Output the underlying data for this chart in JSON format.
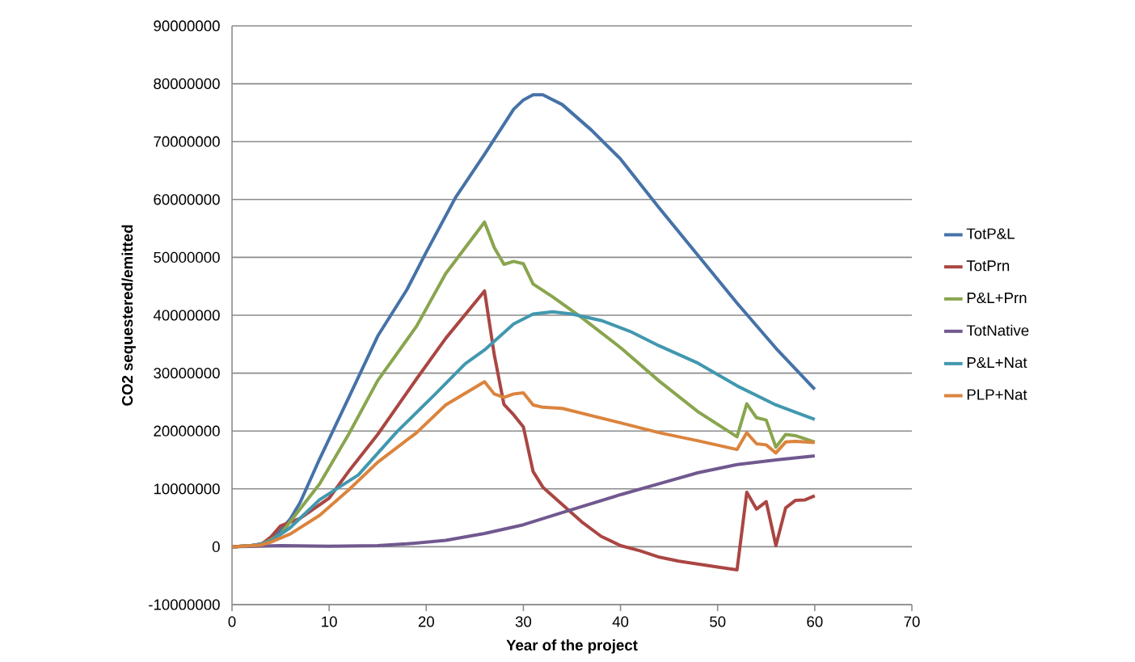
{
  "chart_data": {
    "type": "line",
    "xlabel": "Year of the project",
    "ylabel": "CO2 sequestered/emitted",
    "xlim": [
      0,
      70
    ],
    "ylim": [
      -10000000,
      90000000
    ],
    "xticks": [
      0,
      10,
      20,
      30,
      40,
      50,
      60,
      70
    ],
    "yticks": [
      -10000000,
      0,
      10000000,
      20000000,
      30000000,
      40000000,
      50000000,
      60000000,
      70000000,
      80000000,
      90000000
    ],
    "grid": "y",
    "legend": "right",
    "marker": "none",
    "line_style": "solid",
    "series": [
      {
        "name": "TotP&L",
        "color": "#4572a7",
        "x": [
          0,
          1,
          2,
          3,
          4,
          5,
          6,
          7,
          9,
          12,
          15,
          18,
          20,
          23,
          26,
          29,
          30,
          31,
          32,
          34,
          37,
          40,
          44,
          48,
          52,
          56,
          60
        ],
        "values": [
          0,
          100000,
          200000,
          500000,
          1200000,
          2800000,
          4800000,
          7600000,
          15100000,
          25700000,
          36400000,
          44400000,
          50900000,
          60300000,
          67800000,
          75600000,
          77200000,
          78100000,
          78100000,
          76400000,
          72000000,
          67000000,
          58500000,
          50300000,
          42100000,
          34300000,
          27200000
        ]
      },
      {
        "name": "TotPrn",
        "color": "#aa4643",
        "x": [
          0,
          1,
          2,
          3,
          4,
          5,
          7,
          10,
          12,
          15,
          19,
          22,
          26,
          27,
          28,
          29,
          30,
          31,
          32,
          34,
          36,
          38,
          40,
          42,
          44,
          46,
          48,
          50,
          52,
          53,
          54,
          55,
          56,
          57,
          58,
          59,
          60
        ],
        "values": [
          0,
          100000,
          200000,
          400000,
          1700000,
          3600000,
          4900000,
          8400000,
          13000000,
          19400000,
          29000000,
          36000000,
          44200000,
          33200000,
          24600000,
          22800000,
          20700000,
          13000000,
          10300000,
          7300000,
          4300000,
          1800000,
          200000,
          -700000,
          -1800000,
          -2500000,
          -3000000,
          -3500000,
          -4000000,
          9400000,
          6500000,
          7800000,
          200000,
          6700000,
          8000000,
          8100000,
          8800000
        ]
      },
      {
        "name": "P&L+Prn",
        "color": "#89a54e",
        "x": [
          0,
          1,
          2,
          3,
          4,
          5,
          9,
          12,
          15,
          19,
          22,
          26,
          27,
          28,
          29,
          30,
          31,
          33,
          36,
          40,
          44,
          48,
          52,
          53,
          54,
          55,
          56,
          57,
          58,
          60
        ],
        "values": [
          0,
          100000,
          200000,
          400000,
          1200000,
          2200000,
          10800000,
          19400000,
          28700000,
          38100000,
          47200000,
          56100000,
          51700000,
          48800000,
          49300000,
          48900000,
          45400000,
          43200000,
          39600000,
          34400000,
          28600000,
          23300000,
          19000000,
          24700000,
          22300000,
          21900000,
          17200000,
          19400000,
          19200000,
          18100000
        ]
      },
      {
        "name": "TotNative",
        "color": "#71588f",
        "x": [
          0,
          5,
          10,
          15,
          18,
          22,
          26,
          30,
          34,
          40,
          44,
          48,
          52,
          56,
          60
        ],
        "values": [
          0,
          200000,
          100000,
          200000,
          500000,
          1100000,
          2300000,
          3800000,
          5900000,
          9000000,
          10900000,
          12800000,
          14200000,
          15000000,
          15700000
        ]
      },
      {
        "name": "P&L+Nat",
        "color": "#4198af",
        "x": [
          0,
          1,
          2,
          3,
          4,
          6,
          9,
          13,
          17,
          21,
          24,
          26,
          29,
          31,
          33,
          35,
          38,
          41,
          44,
          48,
          52,
          56,
          60
        ],
        "values": [
          0,
          100000,
          200000,
          400000,
          1000000,
          3300000,
          8100000,
          12400000,
          19900000,
          26500000,
          31600000,
          34000000,
          38500000,
          40200000,
          40600000,
          40200000,
          39100000,
          37200000,
          34700000,
          31700000,
          27800000,
          24500000,
          22000000
        ]
      },
      {
        "name": "PLP+Nat",
        "color": "#db843d",
        "x": [
          0,
          1,
          2,
          3,
          4,
          6,
          9,
          12,
          15,
          19,
          22,
          26,
          27,
          28,
          29,
          30,
          31,
          32,
          34,
          40,
          44,
          48,
          52,
          53,
          54,
          55,
          56,
          57,
          58,
          60
        ],
        "values": [
          0,
          100000,
          200000,
          300000,
          800000,
          2200000,
          5400000,
          9800000,
          14600000,
          19700000,
          24500000,
          28500000,
          26400000,
          25800000,
          26400000,
          26600000,
          24500000,
          24100000,
          23900000,
          21400000,
          19700000,
          18300000,
          16800000,
          19700000,
          17800000,
          17600000,
          16200000,
          18100000,
          18200000,
          18000000
        ]
      }
    ]
  }
}
